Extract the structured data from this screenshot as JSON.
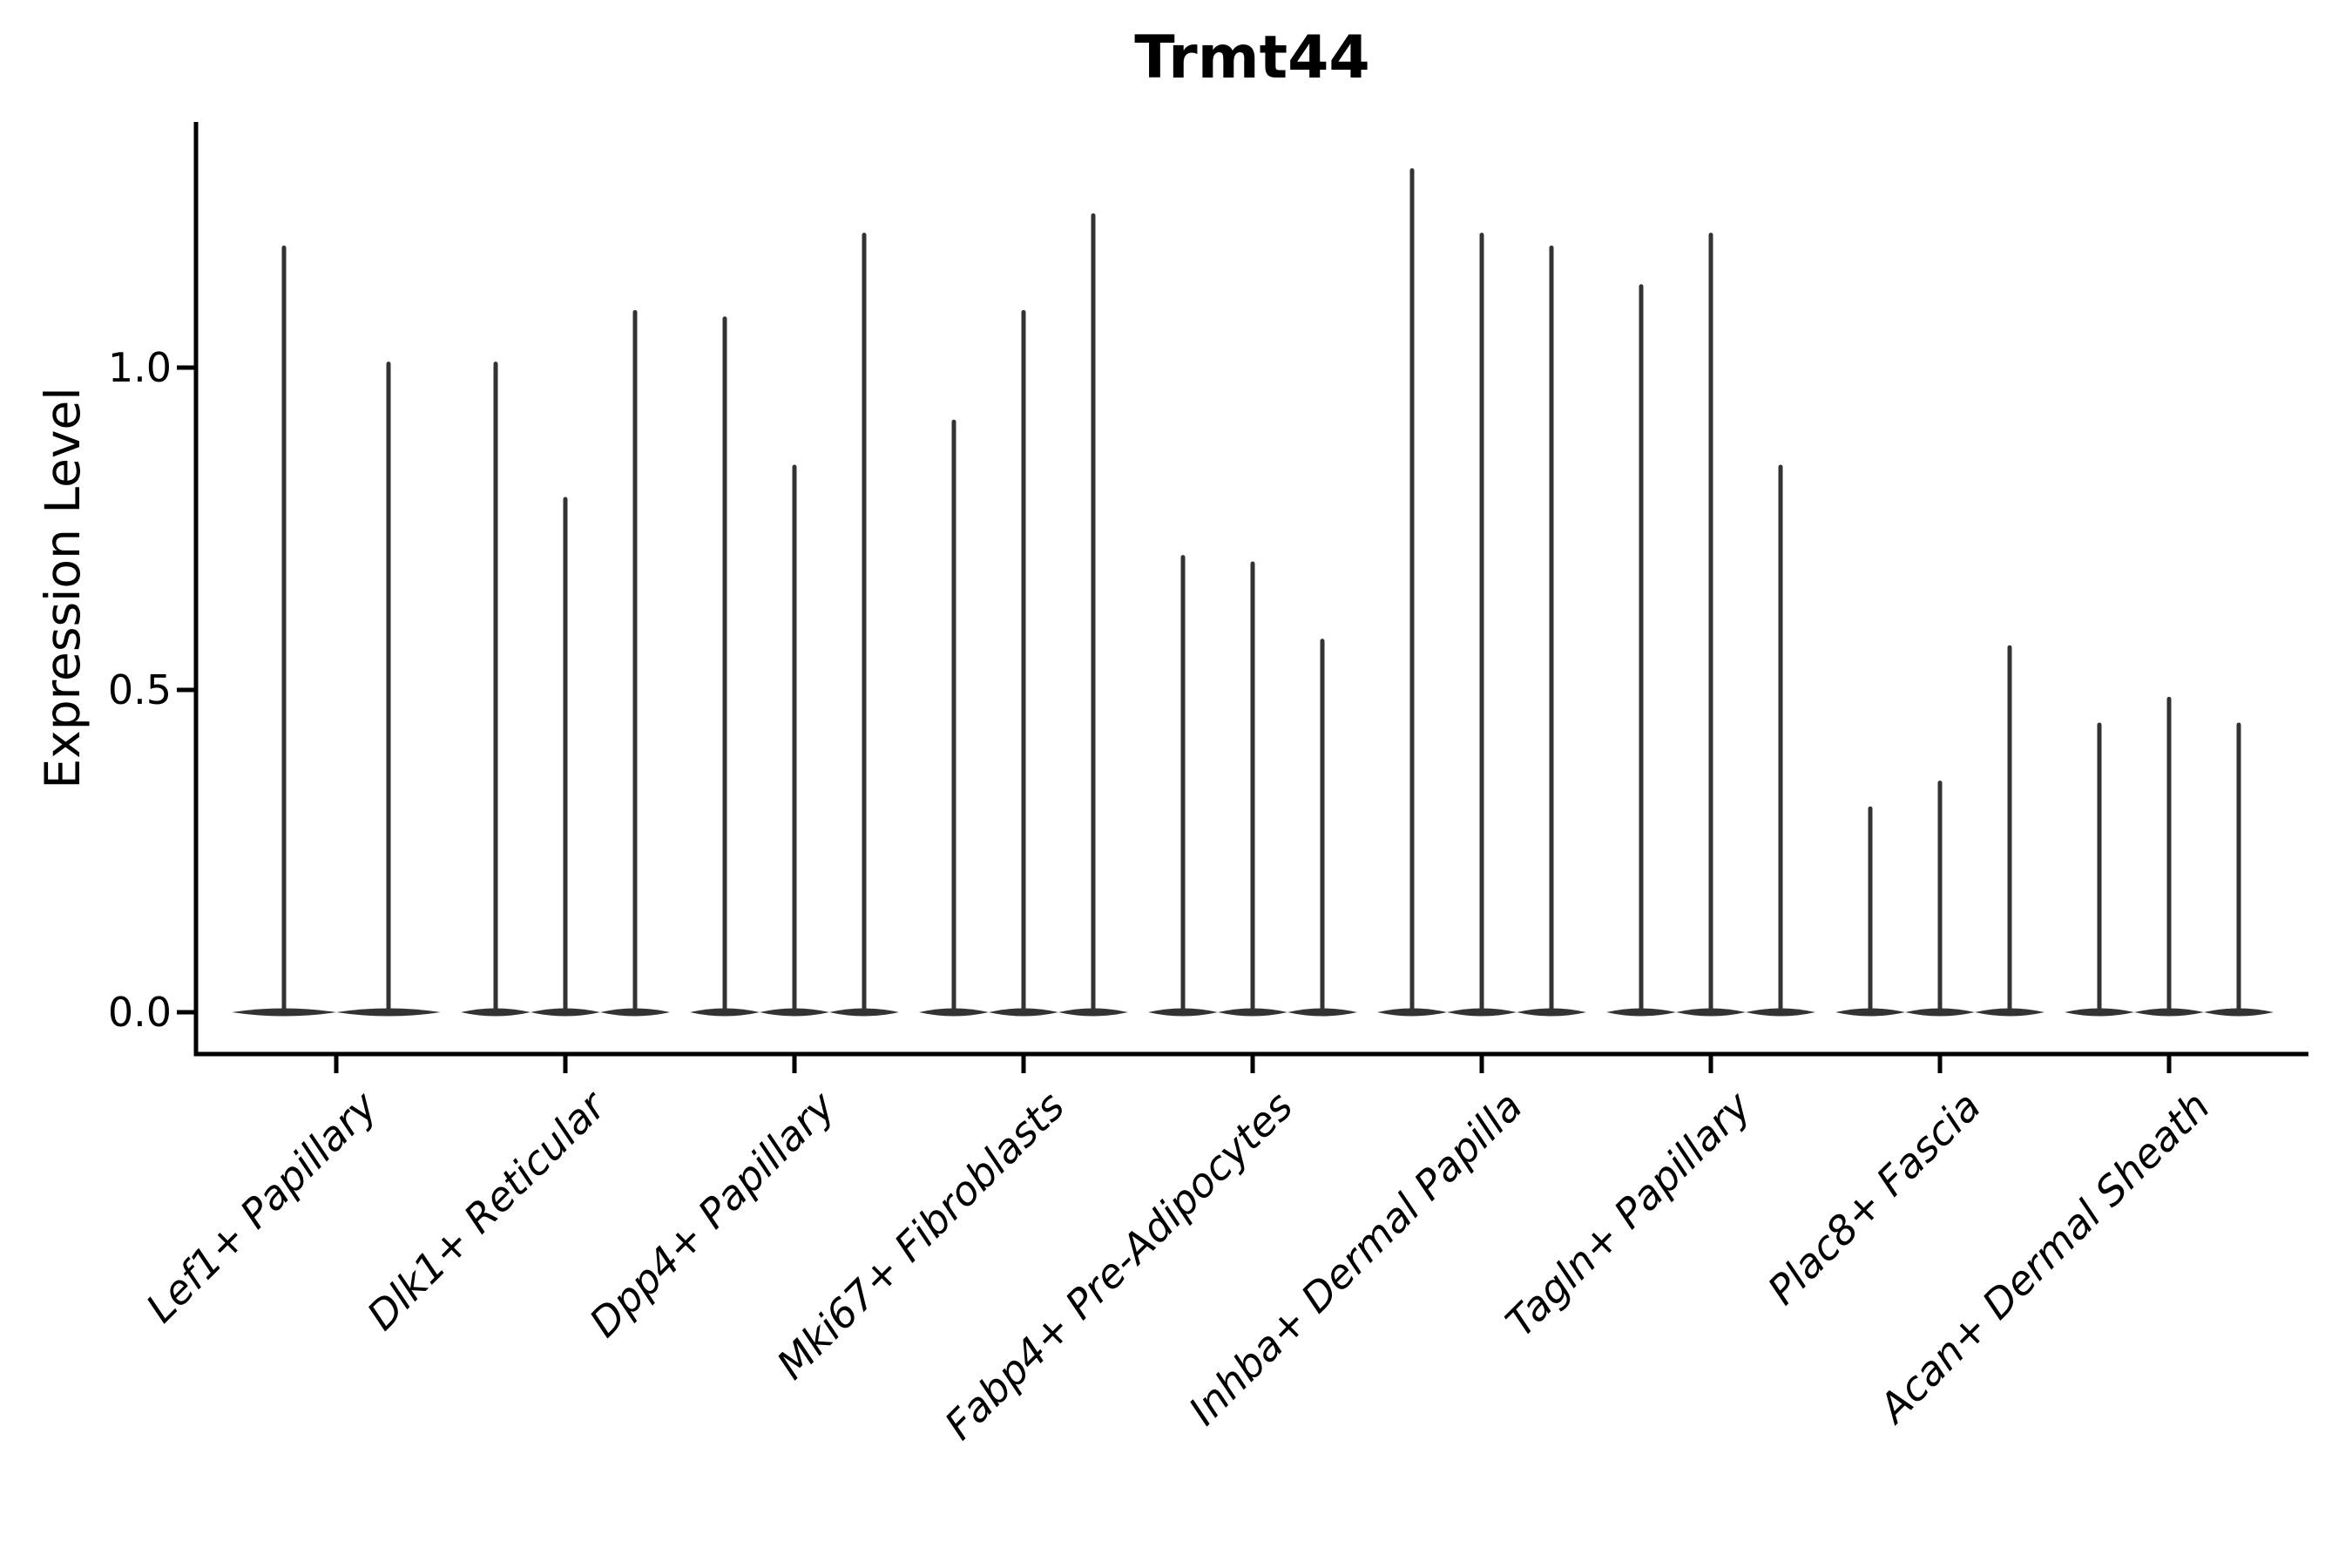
{
  "figure": {
    "title": "Trmt44",
    "y_axis_title": "Expression Level"
  },
  "chart_data": {
    "type": "violin",
    "title": "Trmt44",
    "xlabel": "",
    "ylabel": "Expression Level",
    "ylim": [
      0,
      1.38
    ],
    "yticks": [
      0.0,
      0.5,
      1.0
    ],
    "ytick_labels": [
      "0.0",
      "0.5",
      "1.0"
    ],
    "grid": false,
    "legend": "none",
    "violin_color": "#333333",
    "axis_color": "#000000",
    "categories": [
      "Lef1+ Papillary",
      "Dlk1+ Reticular",
      "Dpp4+ Papillary",
      "Mki67+ Fibroblasts",
      "Fabp4+ Pre-Adipocytes",
      "Inhba+ Dermal Papilla",
      "Tagln+ Papillary",
      "Plac8+ Fascia",
      "Acan+ Dermal Sheath"
    ],
    "groups": [
      {
        "category": "Lef1+ Papillary",
        "half_width": 60,
        "violins": [
          {
            "offset": -60,
            "max": 1.19
          },
          {
            "offset": 60,
            "max": 1.01
          }
        ]
      },
      {
        "category": "Dlk1+ Reticular",
        "half_width": 40,
        "violins": [
          {
            "offset": -80,
            "max": 1.01
          },
          {
            "offset": 0,
            "max": 0.8
          },
          {
            "offset": 80,
            "max": 1.09
          }
        ]
      },
      {
        "category": "Dpp4+ Papillary",
        "half_width": 40,
        "violins": [
          {
            "offset": -80,
            "max": 1.08
          },
          {
            "offset": 0,
            "max": 0.85
          },
          {
            "offset": 80,
            "max": 1.21
          }
        ]
      },
      {
        "category": "Mki67+ Fibroblasts",
        "half_width": 40,
        "violins": [
          {
            "offset": -80,
            "max": 0.92
          },
          {
            "offset": 0,
            "max": 1.09
          },
          {
            "offset": 80,
            "max": 1.24
          }
        ]
      },
      {
        "category": "Fabp4+ Pre-Adipocytes",
        "half_width": 40,
        "violins": [
          {
            "offset": -80,
            "max": 0.71
          },
          {
            "offset": 0,
            "max": 0.7
          },
          {
            "offset": 80,
            "max": 0.58
          }
        ]
      },
      {
        "category": "Inhba+ Dermal Papilla",
        "half_width": 40,
        "violins": [
          {
            "offset": -80,
            "max": 1.31
          },
          {
            "offset": 0,
            "max": 1.21
          },
          {
            "offset": 80,
            "max": 1.19
          }
        ]
      },
      {
        "category": "Tagln+ Papillary",
        "half_width": 40,
        "violins": [
          {
            "offset": -80,
            "max": 1.13
          },
          {
            "offset": 0,
            "max": 1.21
          },
          {
            "offset": 80,
            "max": 0.85
          }
        ]
      },
      {
        "category": "Plac8+ Fascia",
        "half_width": 40,
        "violins": [
          {
            "offset": -80,
            "max": 0.32
          },
          {
            "offset": 0,
            "max": 0.36
          },
          {
            "offset": 80,
            "max": 0.57
          }
        ]
      },
      {
        "category": "Acan+ Dermal Sheath",
        "half_width": 40,
        "violins": [
          {
            "offset": -80,
            "max": 0.45
          },
          {
            "offset": 0,
            "max": 0.49
          },
          {
            "offset": 80,
            "max": 0.45
          }
        ]
      }
    ]
  }
}
